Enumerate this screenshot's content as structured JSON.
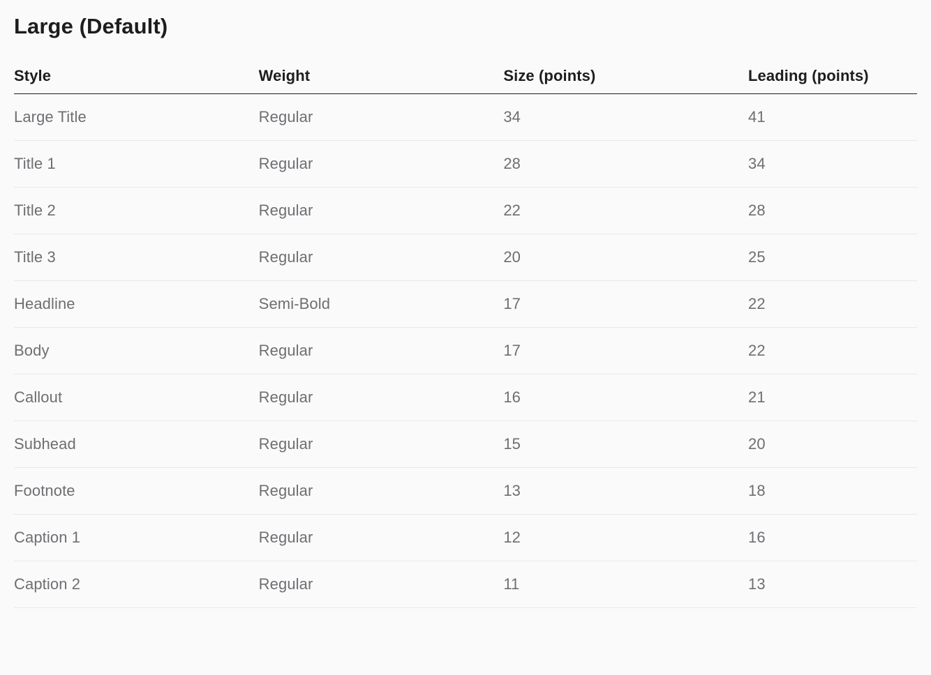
{
  "heading": "Large (Default)",
  "table": {
    "columns": [
      "Style",
      "Weight",
      "Size (points)",
      "Leading (points)"
    ],
    "rows": [
      [
        "Large Title",
        "Regular",
        "34",
        "41"
      ],
      [
        "Title 1",
        "Regular",
        "28",
        "34"
      ],
      [
        "Title 2",
        "Regular",
        "22",
        "28"
      ],
      [
        "Title 3",
        "Regular",
        "20",
        "25"
      ],
      [
        "Headline",
        "Semi-Bold",
        "17",
        "22"
      ],
      [
        "Body",
        "Regular",
        "17",
        "22"
      ],
      [
        "Callout",
        "Regular",
        "16",
        "21"
      ],
      [
        "Subhead",
        "Regular",
        "15",
        "20"
      ],
      [
        "Footnote",
        "Regular",
        "13",
        "18"
      ],
      [
        "Caption 1",
        "Regular",
        "12",
        "16"
      ],
      [
        "Caption 2",
        "Regular",
        "11",
        "13"
      ]
    ],
    "column_widths_pct": [
      27.1,
      27.1,
      27.1,
      18.7
    ],
    "header_fontsize_pt": 22,
    "header_fontweight": 600,
    "header_color": "#1d1d1f",
    "header_border_color": "#1d1d1f",
    "cell_fontsize_pt": 22,
    "cell_fontweight": 400,
    "cell_color": "#6e6e73",
    "row_border_color": "#e8e8ed",
    "background_color": "#fafafa",
    "heading_fontsize_pt": 31,
    "heading_fontweight": 700,
    "heading_color": "#1d1d1f"
  }
}
